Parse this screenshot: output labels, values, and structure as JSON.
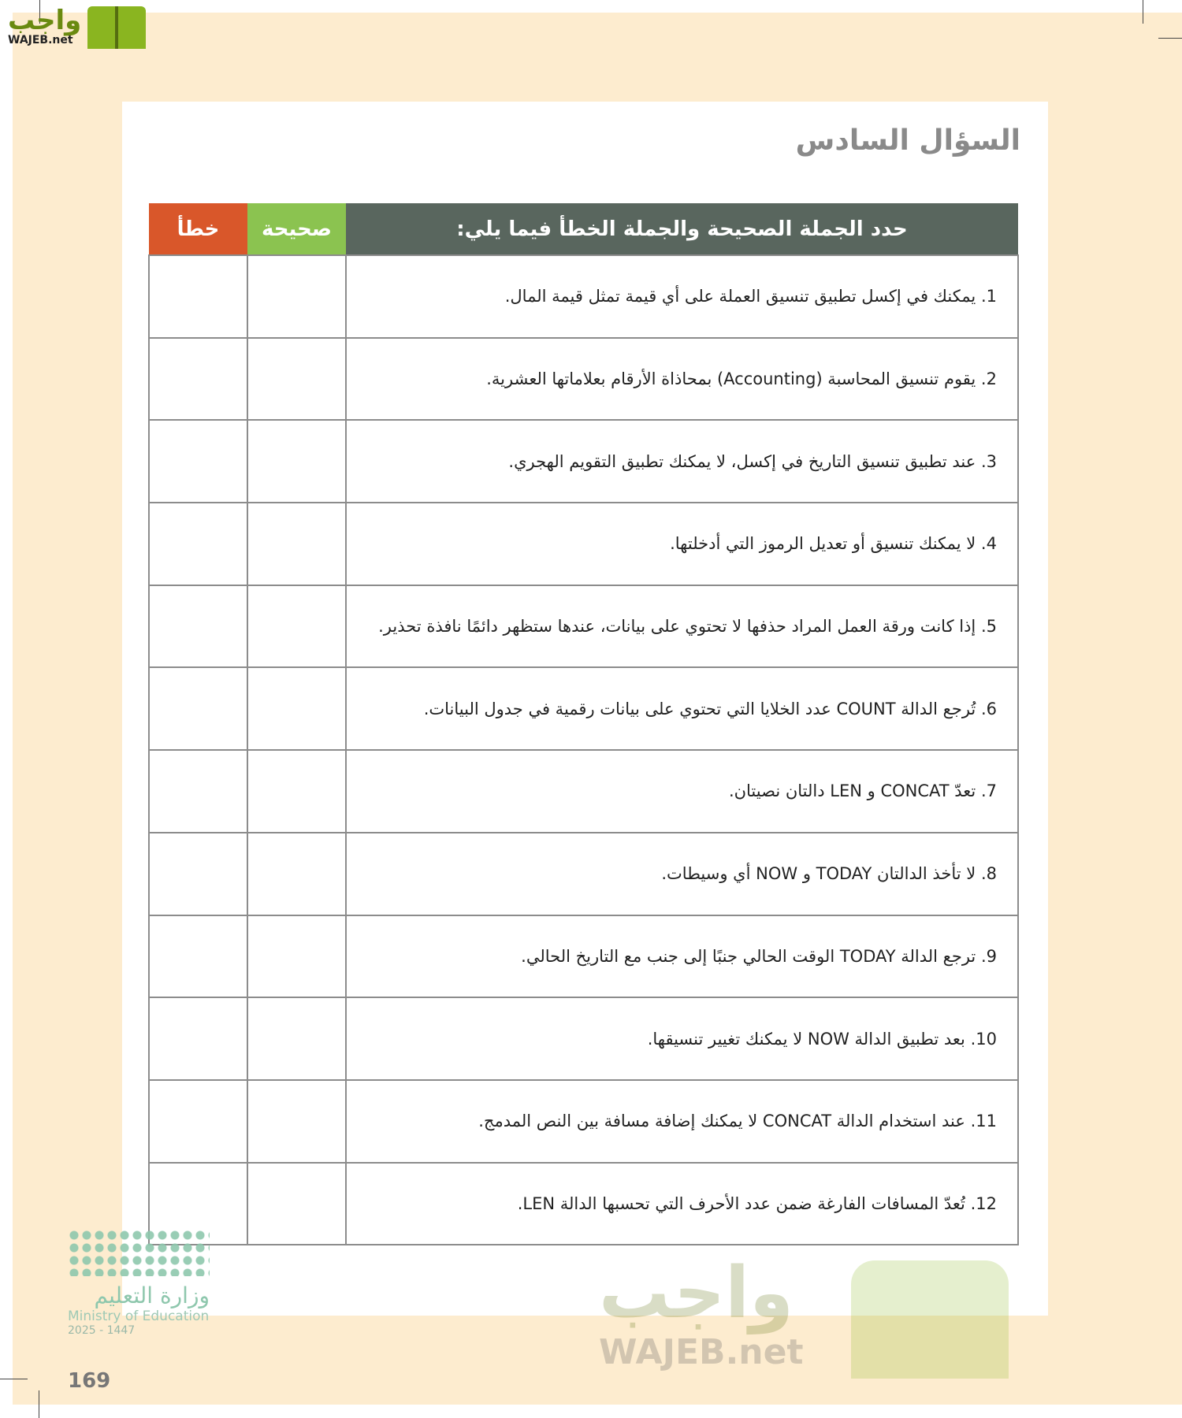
{
  "logo": {
    "arabic": "واجب",
    "latin": "WAJEB.net"
  },
  "title": "السؤال السادس",
  "table": {
    "headers": {
      "question": "حدد الجملة الصحيحة والجملة الخطأ فيما يلي:",
      "true": "صحيحة",
      "false": "خطأ"
    },
    "rows": [
      "1. يمكنك في إكسل تطبيق تنسيق العملة على أي قيمة تمثل قيمة المال.",
      "2. يقوم تنسيق المحاسبة (Accounting) بمحاذاة الأرقام بعلاماتها العشرية.",
      "3. عند تطبيق تنسيق التاريخ في إكسل، لا يمكنك تطبيق التقويم الهجري.",
      "4. لا يمكنك تنسيق أو تعديل الرموز التي أدخلتها.",
      "5. إذا كانت ورقة العمل المراد حذفها لا تحتوي على بيانات، عندها ستظهر دائمًا نافذة تحذير.",
      "6. تُرجع الدالة COUNT عدد الخلايا التي تحتوي على بيانات رقمية في جدول البيانات.",
      "7. تعدّ CONCAT و LEN دالتان نصيتان.",
      "8. لا تأخذ الدالتان TODAY و NOW أي وسيطات.",
      "9. ترجع الدالة TODAY الوقت الحالي جنبًا إلى جنب مع التاريخ الحالي.",
      "10. بعد تطبيق الدالة NOW لا يمكنك تغيير تنسيقها.",
      "11. عند استخدام الدالة CONCAT لا يمكنك إضافة مسافة بين النص المدمج.",
      "12. تُعدّ المسافات الفارغة ضمن عدد الأحرف التي تحسبها الدالة LEN."
    ]
  },
  "watermark": {
    "arabic": "واجب",
    "latin": "WAJEB.net"
  },
  "ministry": {
    "arabic": "وزارة التعليم",
    "english": "Ministry of Education",
    "year": "2025 - 1447"
  },
  "page_number": "169",
  "colors": {
    "header": "#59665e",
    "true": "#8bc350",
    "false": "#d9572a",
    "page": "#fdeccf"
  }
}
